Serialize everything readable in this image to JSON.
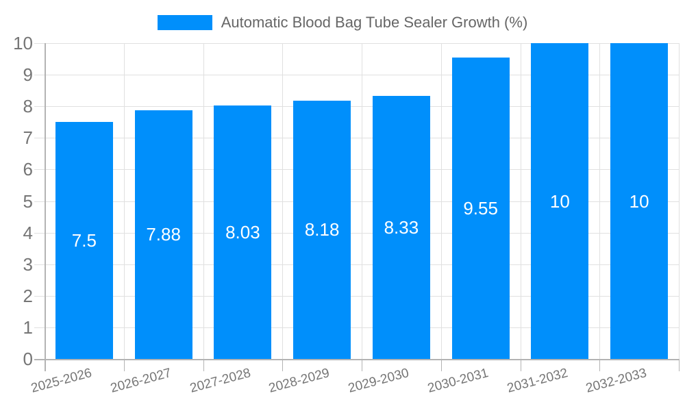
{
  "colors": {
    "bar": "#008FFB",
    "grid": "#e0e0e0",
    "axis": "#b3b3b3",
    "tick_text": "#757575",
    "legend_text": "#666666",
    "data_label": "#ffffff",
    "background": "#ffffff"
  },
  "chart_data": {
    "type": "bar",
    "title": "",
    "legend": {
      "position": "top",
      "label": "Automatic Blood Bag Tube Sealer Growth (%)"
    },
    "categories": [
      "2025-2026",
      "2026-2027",
      "2027-2028",
      "2028-2029",
      "2029-2030",
      "2030-2031",
      "2031-2032",
      "2032-2033"
    ],
    "series": [
      {
        "name": "Automatic Blood Bag Tube Sealer Growth (%)",
        "values": [
          7.5,
          7.88,
          8.03,
          8.18,
          8.33,
          9.55,
          10,
          10
        ],
        "value_labels": [
          "7.5",
          "7.88",
          "8.03",
          "8.18",
          "8.33",
          "9.55",
          "10",
          "10"
        ],
        "color": "#008FFB"
      }
    ],
    "xlabel": "",
    "ylabel": "",
    "ylim": [
      0,
      10
    ],
    "yticks": [
      0,
      1,
      2,
      3,
      4,
      5,
      6,
      7,
      8,
      9,
      10
    ],
    "grid": true,
    "data_labels": "inside-center"
  }
}
